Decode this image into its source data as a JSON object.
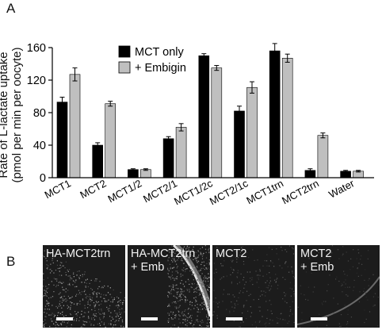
{
  "panels": {
    "a_label": "A",
    "b_label": "B"
  },
  "chart_data": {
    "type": "bar",
    "title": "",
    "xlabel": "",
    "ylabel": "Rate of L-lactate uptake\n(pmol per min per oocyte)",
    "ylabel_lines": [
      "Rate of L-lactate uptake",
      "(pmol per min per oocyte)"
    ],
    "ylim": [
      0,
      160
    ],
    "yticks": [
      0,
      40,
      80,
      120,
      160
    ],
    "categories": [
      "MCT1",
      "MCT2",
      "MCT1/2",
      "MCT2/1",
      "MCT1/2c",
      "MCT2/1c",
      "MCT1trn",
      "MCT2trn",
      "Water"
    ],
    "series": [
      {
        "name": "MCT only",
        "color": "#000000",
        "values": [
          93,
          40,
          10,
          48,
          150,
          82,
          156,
          9,
          8
        ],
        "errors": [
          6,
          3,
          1,
          2.5,
          2.5,
          6,
          9,
          2,
          1
        ]
      },
      {
        "name": "+ Embigin",
        "color": "#bfbfbf",
        "values": [
          127,
          91,
          10,
          62,
          135,
          111,
          147,
          52,
          8
        ],
        "errors": [
          8,
          3,
          1,
          4.5,
          3,
          7,
          5,
          3,
          1
        ]
      }
    ],
    "legend_position": "top-center",
    "grid": false
  },
  "micrographs": [
    {
      "caption": [
        "HA-MCT2trn"
      ],
      "texture": "dense-speckle"
    },
    {
      "caption": [
        "HA-MCT2trn",
        "+ Emb"
      ],
      "texture": "bright-rim"
    },
    {
      "caption": [
        "MCT2"
      ],
      "texture": "faint-speckle"
    },
    {
      "caption": [
        "MCT2",
        "+ Emb"
      ],
      "texture": "faint-rim"
    }
  ]
}
